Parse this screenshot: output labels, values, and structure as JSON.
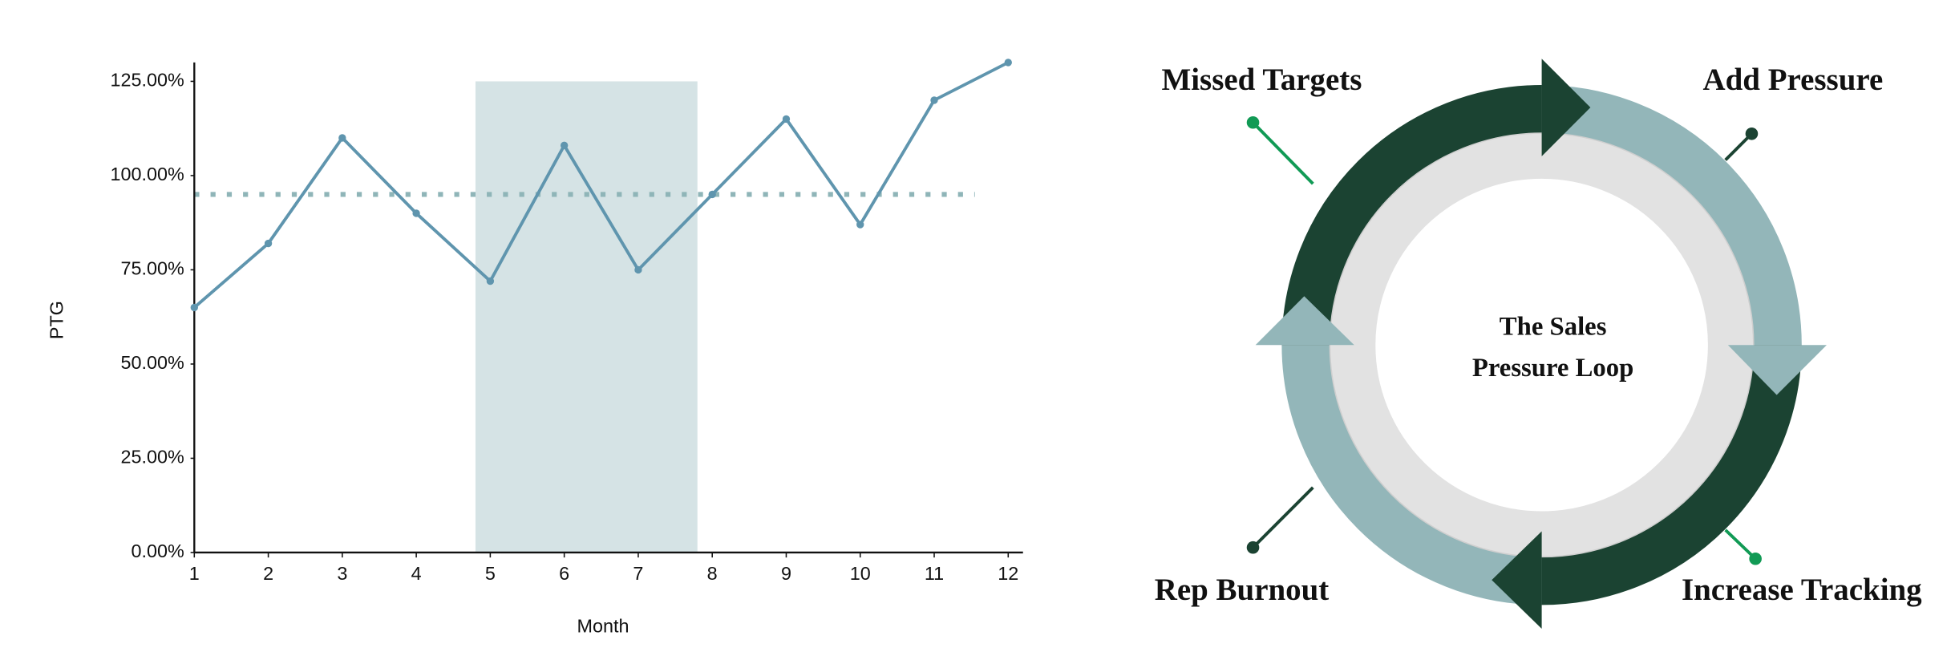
{
  "chart_data": {
    "type": "line",
    "x_label": "Month",
    "y_label": "PTG",
    "x": [
      1,
      2,
      3,
      4,
      5,
      6,
      7,
      8,
      9,
      10,
      11,
      12
    ],
    "series": [
      {
        "color": "#5f95ae",
        "values": [
          65,
          82,
          110,
          90,
          72,
          108,
          75,
          95,
          115,
          87,
          120,
          130
        ]
      }
    ],
    "xlim": [
      1,
      12.2
    ],
    "ylim": [
      0,
      130
    ],
    "xticks": [
      1,
      2,
      3,
      4,
      5,
      6,
      7,
      8,
      9,
      10,
      11,
      12
    ],
    "yticks": [
      {
        "value": 0,
        "label": "0.00%"
      },
      {
        "value": 25,
        "label": "25.00%"
      },
      {
        "value": 50,
        "label": "50.00%"
      },
      {
        "value": 75,
        "label": "75.00%"
      },
      {
        "value": 100,
        "label": "100.00%"
      },
      {
        "value": 125,
        "label": "125.00%"
      }
    ],
    "reference_line": {
      "value": 95,
      "x": [
        1,
        11.55
      ],
      "color": "#8fb5b8"
    },
    "shaded_range": {
      "x": [
        4.8,
        7.8
      ],
      "y": [
        0,
        125
      ],
      "color": "#d5e3e5"
    }
  },
  "diagram": {
    "center_lines": [
      "The Sales",
      "Pressure Loop"
    ],
    "nodes": [
      {
        "label": "Missed Targets"
      },
      {
        "label": "Add Pressure"
      },
      {
        "label": "Increase Tracking"
      },
      {
        "label": "Rep Burnout"
      }
    ]
  }
}
